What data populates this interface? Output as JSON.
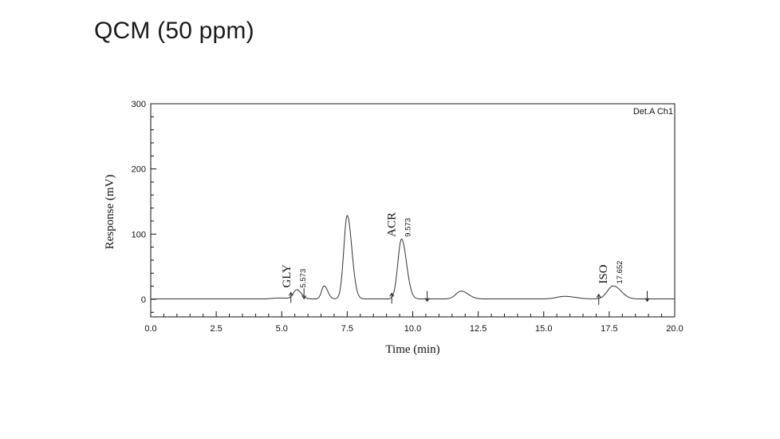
{
  "slide": {
    "title": "QCM (50 ppm)"
  },
  "chart_data": {
    "type": "line",
    "detector_label": "Det.A Ch1",
    "xlabel": "Time (min)",
    "ylabel": "Response (mV)",
    "xlim": [
      0,
      20
    ],
    "ylim": [
      -27,
      300
    ],
    "x_ticks": [
      {
        "v": 0,
        "label": "0.0"
      },
      {
        "v": 2.5,
        "label": "2.5"
      },
      {
        "v": 5,
        "label": "5.0"
      },
      {
        "v": 7.5,
        "label": "7.5"
      },
      {
        "v": 10,
        "label": "10.0"
      },
      {
        "v": 12.5,
        "label": "12.5"
      },
      {
        "v": 15,
        "label": "15.0"
      },
      {
        "v": 17.5,
        "label": "17.5"
      },
      {
        "v": 20,
        "label": "20.0"
      }
    ],
    "y_ticks": [
      {
        "v": 0,
        "label": "0"
      },
      {
        "v": 100,
        "label": "100"
      },
      {
        "v": 200,
        "label": "200"
      },
      {
        "v": 300,
        "label": "300"
      }
    ],
    "grid": false,
    "baseline": 0.5,
    "peaks": [
      {
        "t": 4.9,
        "height": 1.5,
        "width": 0.25
      },
      {
        "t": 5.573,
        "height": 14,
        "width": 0.13
      },
      {
        "t": 6.62,
        "height": 20,
        "width": 0.1
      },
      {
        "t": 7.5,
        "height": 128,
        "width": 0.13
      },
      {
        "t": 9.573,
        "height": 92,
        "width": 0.14
      },
      {
        "t": 11.85,
        "height": 12,
        "width": 0.2
      },
      {
        "t": 15.8,
        "height": 4,
        "width": 0.3
      },
      {
        "t": 17.652,
        "height": 20,
        "width": 0.22
      }
    ],
    "annotations": [
      {
        "name": "GLY",
        "rt_label": "5.573",
        "t": 5.573,
        "y": 14
      },
      {
        "name": "ACR",
        "rt_label": "9.573",
        "t": 9.573,
        "y": 92
      },
      {
        "name": "ISO",
        "rt_label": "17.652",
        "t": 17.652,
        "y": 20
      }
    ],
    "integration_marks": [
      {
        "t": 5.35,
        "dir": "up"
      },
      {
        "t": 5.85,
        "dir": "down"
      },
      {
        "t": 9.2,
        "dir": "up"
      },
      {
        "t": 10.55,
        "dir": "down"
      },
      {
        "t": 17.1,
        "dir": "up"
      },
      {
        "t": 18.95,
        "dir": "down"
      }
    ]
  }
}
